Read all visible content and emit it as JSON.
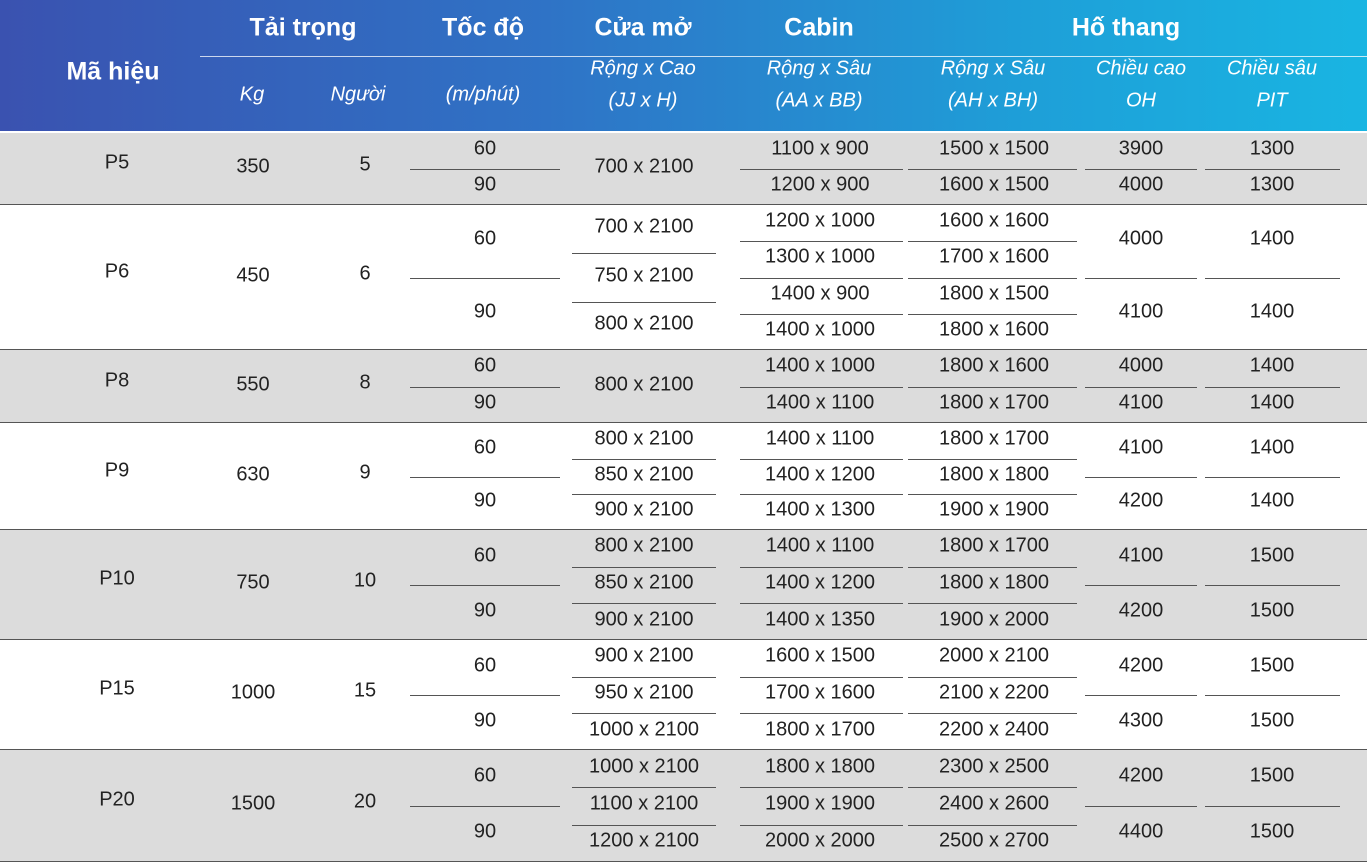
{
  "header": {
    "ma_hieu": "Mã hiệu",
    "tai_trong": "Tải trọng",
    "kg": "Kg",
    "nguoi": "Người",
    "toc_do": "Tốc độ",
    "toc_do_unit": "(m/phút)",
    "cua_mo": "Cửa mở",
    "cua_mo_sub1": "Rộng x Cao",
    "cua_mo_sub2": "(JJ x H)",
    "cabin": "Cabin",
    "cabin_sub1": "Rộng x Sâu",
    "cabin_sub2": "(AA x BB)",
    "ho_thang": "Hố thang",
    "ho_sub1": "Rộng x Sâu",
    "ho_sub2": "(AH x BH)",
    "oh_sub1": "Chiều cao",
    "oh_sub2": "OH",
    "pit_sub1": "Chiều sâu",
    "pit_sub2": "PIT"
  },
  "rows": [
    {
      "code": "P5",
      "kg": "350",
      "persons": "5",
      "speeds": [
        "60",
        "90"
      ],
      "doors": [
        "700 x 2100"
      ],
      "cabins": [
        "1100 x 900",
        "1200 x 900"
      ],
      "shafts": [
        "1500 x 1500",
        "1600 x 1500"
      ],
      "oh": [
        "3900",
        "4000"
      ],
      "pit": [
        "1300",
        "1300"
      ]
    },
    {
      "code": "P6",
      "kg": "450",
      "persons": "6",
      "speeds": [
        "60",
        "90"
      ],
      "doors": [
        "700 x 2100",
        "750 x 2100",
        "800 x 2100"
      ],
      "cabins": [
        "1200 x 1000",
        "1300 x 1000",
        "1400 x 900",
        "1400 x 1000"
      ],
      "shafts": [
        "1600 x 1600",
        "1700 x 1600",
        "1800 x 1500",
        "1800 x 1600"
      ],
      "oh": [
        "4000",
        "4100"
      ],
      "pit": [
        "1400",
        "1400"
      ]
    },
    {
      "code": "P8",
      "kg": "550",
      "persons": "8",
      "speeds": [
        "60",
        "90"
      ],
      "doors": [
        "800 x 2100"
      ],
      "cabins": [
        "1400 x 1000",
        "1400 x 1100"
      ],
      "shafts": [
        "1800 x 1600",
        "1800 x 1700"
      ],
      "oh": [
        "4000",
        "4100"
      ],
      "pit": [
        "1400",
        "1400"
      ]
    },
    {
      "code": "P9",
      "kg": "630",
      "persons": "9",
      "speeds": [
        "60",
        "90"
      ],
      "doors": [
        "800 x 2100",
        "850 x 2100",
        "900 x 2100"
      ],
      "cabins": [
        "1400 x 1100",
        "1400 x 1200",
        "1400 x 1300"
      ],
      "shafts": [
        "1800 x 1700",
        "1800 x 1800",
        "1900 x 1900"
      ],
      "oh": [
        "4100",
        "4200"
      ],
      "pit": [
        "1400",
        "1400"
      ]
    },
    {
      "code": "P10",
      "kg": "750",
      "persons": "10",
      "speeds": [
        "60",
        "90"
      ],
      "doors": [
        "800 x 2100",
        "850 x 2100",
        "900 x 2100"
      ],
      "cabins": [
        "1400 x 1100",
        "1400 x 1200",
        "1400 x 1350"
      ],
      "shafts": [
        "1800 x 1700",
        "1800 x 1800",
        "1900 x 2000"
      ],
      "oh": [
        "4100",
        "4200"
      ],
      "pit": [
        "1500",
        "1500"
      ]
    },
    {
      "code": "P15",
      "kg": "1000",
      "persons": "15",
      "speeds": [
        "60",
        "90"
      ],
      "doors": [
        "900 x 2100",
        "950 x 2100",
        "1000 x 2100"
      ],
      "cabins": [
        "1600 x 1500",
        "1700 x 1600",
        "1800 x 1700"
      ],
      "shafts": [
        "2000 x 2100",
        "2100 x 2200",
        "2200 x 2400"
      ],
      "oh": [
        "4200",
        "4300"
      ],
      "pit": [
        "1500",
        "1500"
      ]
    },
    {
      "code": "P20",
      "kg": "1500",
      "persons": "20",
      "speeds": [
        "60",
        "90"
      ],
      "doors": [
        "1000 x 2100",
        "1100 x 2100",
        "1200 x 2100"
      ],
      "cabins": [
        "1800 x 1800",
        "1900 x 1900",
        "2000 x 2000"
      ],
      "shafts": [
        "2300 x 2500",
        "2400 x 2600",
        "2500 x 2700"
      ],
      "oh": [
        "4200",
        "4400"
      ],
      "pit": [
        "1500",
        "1500"
      ]
    }
  ]
}
